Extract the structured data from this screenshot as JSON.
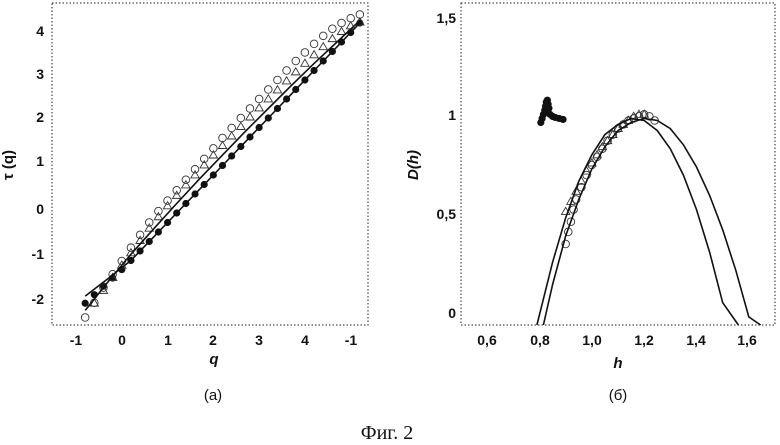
{
  "figure_caption": "Фиг. 2",
  "chart_data": [
    {
      "type": "line",
      "caption": "(а)",
      "xlabel": "q",
      "ylabel": "τ (q)",
      "x_tick_labels": [
        "-1",
        "0",
        "1",
        "2",
        "3",
        "4",
        "-1"
      ],
      "y_tick_labels": [
        "-2",
        "-1",
        "0",
        "1",
        "2",
        "3",
        "4"
      ],
      "xlim": [
        -1.2,
        5.2
      ],
      "ylim": [
        -2.4,
        4.4
      ],
      "series": [
        {
          "marker": "filled-circle",
          "style": "markers",
          "x": [
            -1,
            -0.8,
            -0.6,
            -0.4,
            -0.2,
            0,
            0.2,
            0.4,
            0.6,
            0.8,
            1,
            1.2,
            1.4,
            1.6,
            1.8,
            2,
            2.2,
            2.4,
            2.6,
            2.8,
            3,
            3.2,
            3.4,
            3.6,
            3.8,
            4,
            4.2,
            4.4,
            4.6,
            4.8,
            5
          ],
          "y": [
            -1.9,
            -1.72,
            -1.54,
            -1.37,
            -1.19,
            -1.0,
            -0.8,
            -0.6,
            -0.4,
            -0.2,
            0.0,
            0.2,
            0.4,
            0.6,
            0.8,
            1.0,
            1.2,
            1.4,
            1.6,
            1.8,
            2.0,
            2.2,
            2.4,
            2.6,
            2.8,
            3.0,
            3.2,
            3.4,
            3.6,
            3.8,
            4.0
          ]
        },
        {
          "marker": "open-circle",
          "style": "markers",
          "x": [
            -1,
            -0.8,
            -0.6,
            -0.4,
            -0.2,
            0,
            0.2,
            0.4,
            0.6,
            0.8,
            1,
            1.2,
            1.4,
            1.6,
            1.8,
            2,
            2.2,
            2.4,
            2.6,
            2.8,
            3,
            3.2,
            3.4,
            3.6,
            3.8,
            4,
            4.2,
            4.4,
            4.6,
            4.8,
            5
          ],
          "y": [
            -2.2,
            -1.89,
            -1.57,
            -1.29,
            -1.01,
            -0.73,
            -0.46,
            -0.2,
            0.04,
            0.26,
            0.48,
            0.7,
            0.92,
            1.14,
            1.36,
            1.58,
            1.79,
            2.0,
            2.2,
            2.4,
            2.6,
            2.8,
            3.0,
            3.2,
            3.38,
            3.56,
            3.73,
            3.88,
            4.0,
            4.1,
            4.18
          ]
        },
        {
          "marker": "open-triangle",
          "style": "markers",
          "x": [
            -0.8,
            -0.6,
            -0.4,
            -0.2,
            0,
            0.2,
            0.4,
            0.6,
            0.8,
            1,
            1.2,
            1.4,
            1.6,
            1.8,
            2,
            2.2,
            2.4,
            2.6,
            2.8,
            3,
            3.2,
            3.4,
            3.6,
            3.8,
            4,
            4.2,
            4.4,
            4.6,
            4.8,
            5
          ],
          "y": [
            -1.9,
            -1.63,
            -1.36,
            -1.1,
            -0.84,
            -0.58,
            -0.32,
            -0.08,
            0.15,
            0.37,
            0.59,
            0.8,
            1.01,
            1.22,
            1.42,
            1.62,
            1.82,
            2.02,
            2.21,
            2.4,
            2.59,
            2.78,
            2.97,
            3.15,
            3.33,
            3.5,
            3.67,
            3.82,
            3.94,
            4.02
          ]
        },
        {
          "marker": "none",
          "style": "solid-line",
          "x": [
            -1,
            -0.5,
            0,
            0.5,
            1,
            1.5,
            2,
            2.5,
            3,
            3.5,
            4,
            4.5,
            5
          ],
          "y": [
            -2.05,
            -1.45,
            -0.87,
            -0.33,
            0.2,
            0.72,
            1.22,
            1.72,
            2.2,
            2.68,
            3.15,
            3.6,
            4.05
          ]
        },
        {
          "marker": "none",
          "style": "solid-line",
          "x": [
            -1,
            -0.5,
            0,
            0.5,
            1,
            1.5,
            2,
            2.5,
            3,
            3.5,
            4,
            4.5,
            5
          ],
          "y": [
            -1.75,
            -1.38,
            -1.0,
            -0.5,
            0.0,
            0.5,
            1.0,
            1.5,
            2.0,
            2.5,
            3.0,
            3.5,
            4.0
          ]
        }
      ]
    },
    {
      "type": "scatter",
      "caption": "(б)",
      "xlabel": "h",
      "ylabel": "D(h)",
      "x_tick_labels": [
        "0,6",
        "0,8",
        "1,0",
        "1,2",
        "1,4",
        "1,6"
      ],
      "y_tick_labels": [
        "0",
        "0,5",
        "1",
        "1,5"
      ],
      "xlim": [
        0.5,
        1.7
      ],
      "ylim": [
        -0.04,
        1.55
      ],
      "series": [
        {
          "marker": "filled-circle",
          "style": "markers",
          "x": [
            0.805,
            0.81,
            0.815,
            0.82,
            0.823,
            0.826,
            0.83,
            0.833,
            0.836,
            0.84,
            0.85,
            0.86,
            0.875,
            0.89
          ],
          "y": [
            0.96,
            0.98,
            1.0,
            1.02,
            1.04,
            1.06,
            1.07,
            1.05,
            1.03,
            1.0,
            0.99,
            0.985,
            0.98,
            0.975
          ]
        },
        {
          "marker": "open-circle",
          "style": "markers",
          "x": [
            0.9,
            0.91,
            0.92,
            0.93,
            0.94,
            0.96,
            0.98,
            1.0,
            1.02,
            1.04,
            1.06,
            1.08,
            1.1,
            1.12,
            1.14,
            1.16,
            1.18,
            1.2,
            1.22,
            1.24
          ],
          "y": [
            0.36,
            0.42,
            0.47,
            0.53,
            0.58,
            0.64,
            0.7,
            0.75,
            0.79,
            0.83,
            0.87,
            0.9,
            0.93,
            0.95,
            0.97,
            0.98,
            0.99,
            1.0,
            0.99,
            0.97
          ]
        },
        {
          "marker": "open-triangle",
          "style": "markers",
          "x": [
            0.9,
            0.92,
            0.94,
            0.96,
            0.98,
            1.0,
            1.02,
            1.04,
            1.06,
            1.08,
            1.1,
            1.12,
            1.14,
            1.16,
            1.18,
            1.2
          ],
          "y": [
            0.52,
            0.57,
            0.62,
            0.67,
            0.72,
            0.76,
            0.8,
            0.84,
            0.87,
            0.9,
            0.93,
            0.95,
            0.97,
            0.99,
            1.0,
            1.0
          ]
        },
        {
          "marker": "none",
          "style": "solid-line",
          "x": [
            0.79,
            0.85,
            0.9,
            0.95,
            1.0,
            1.05,
            1.1,
            1.15,
            1.2,
            1.25,
            1.3,
            1.35,
            1.4,
            1.45,
            1.5,
            1.56
          ],
          "y": [
            -0.04,
            0.27,
            0.49,
            0.67,
            0.8,
            0.9,
            0.95,
            0.98,
            0.97,
            0.92,
            0.83,
            0.7,
            0.53,
            0.32,
            0.07,
            -0.04
          ]
        },
        {
          "marker": "none",
          "style": "solid-line",
          "x": [
            0.815,
            0.85,
            0.9,
            0.95,
            1.0,
            1.05,
            1.1,
            1.15,
            1.2,
            1.25,
            1.3,
            1.35,
            1.4,
            1.45,
            1.5,
            1.55,
            1.6,
            1.645
          ],
          "y": [
            -0.04,
            0.16,
            0.4,
            0.58,
            0.73,
            0.84,
            0.92,
            0.96,
            0.98,
            0.97,
            0.93,
            0.85,
            0.74,
            0.6,
            0.43,
            0.23,
            0.0,
            -0.04
          ]
        }
      ]
    }
  ]
}
